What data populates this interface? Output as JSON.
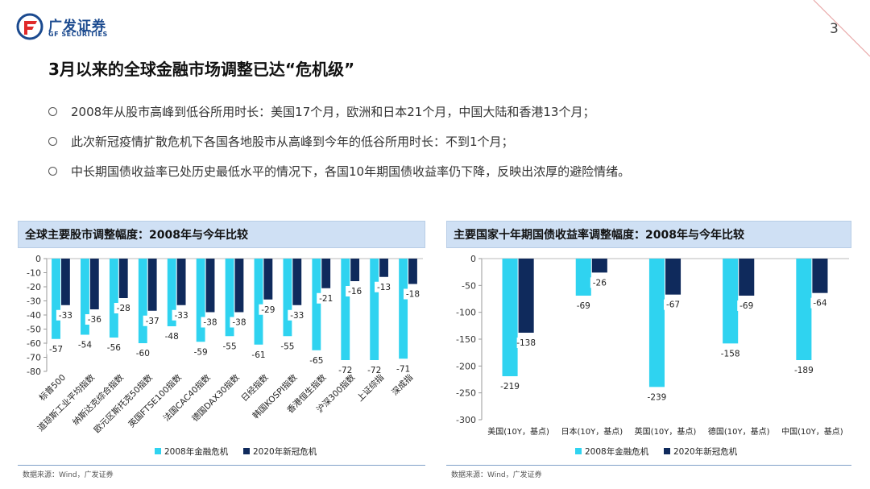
{
  "header": {
    "logo_cn": "广发证券",
    "logo_en": "GF SECURITIES",
    "page_number": "3"
  },
  "title": "3月以来的全球金融市场调整已达“危机级”",
  "bullets": [
    "2008年从股市高峰到低谷所用时长：美国17个月，欧洲和日本21个月，中国大陆和香港13个月；",
    "此次新冠疫情扩散危机下各国各地股市从高峰到今年的低谷所用时长：不到1个月；",
    "中长期国债收益率已处历史最低水平的情况下，各国10年期国债收益率仍下降，反映出浓厚的避险情绪。"
  ],
  "colors": {
    "series_2008": "#2fd3f0",
    "series_2020": "#0f2a5c",
    "panel_header": "#cfe0f4"
  },
  "chart_data": [
    {
      "type": "bar",
      "title": "全球主要股市调整幅度：2008年与今年比较",
      "categories": [
        "标普500",
        "道琼斯工业平均指数",
        "纳斯达克综合指数",
        "欧元区斯托克50指数",
        "英国FTSE100指数",
        "法国CAC40指数",
        "德国DAX30指数",
        "日经指数",
        "韩国KOSPI指数",
        "香港恒生指数",
        "沪深300指数",
        "上证综指",
        "深成指"
      ],
      "series": [
        {
          "name": "2008年金融危机",
          "values": [
            -57,
            -54,
            -56,
            -60,
            -48,
            -59,
            -55,
            -61,
            -55,
            -65,
            -72,
            -72,
            -71
          ]
        },
        {
          "name": "2020年新冠危机",
          "values": [
            -33,
            -36,
            -28,
            -37,
            -33,
            -38,
            -38,
            -29,
            -33,
            -21,
            -16,
            -13,
            -18
          ]
        }
      ],
      "ylim": [
        -80,
        0
      ],
      "yticks": [
        0,
        -10,
        -20,
        -30,
        -40,
        -50,
        -60,
        -70,
        -80
      ],
      "source": "数据来源：Wind，广发证券"
    },
    {
      "type": "bar",
      "title": "主要国家十年期国债收益率调整幅度：2008年与今年比较",
      "categories": [
        "美国(10Y，基点)",
        "日本(10Y，基点)",
        "英国(10Y，基点)",
        "德国(10Y，基点)",
        "中国(10Y，基点)"
      ],
      "series": [
        {
          "name": "2008年金融危机",
          "values": [
            -219,
            -69,
            -239,
            -158,
            -189
          ]
        },
        {
          "name": "2020年新冠危机",
          "values": [
            -138,
            -26,
            -67,
            -69,
            -64
          ]
        }
      ],
      "ylim": [
        -300,
        0
      ],
      "yticks": [
        0,
        -50,
        -100,
        -150,
        -200,
        -250,
        -300
      ],
      "source": "数据来源：Wind，广发证券"
    }
  ]
}
